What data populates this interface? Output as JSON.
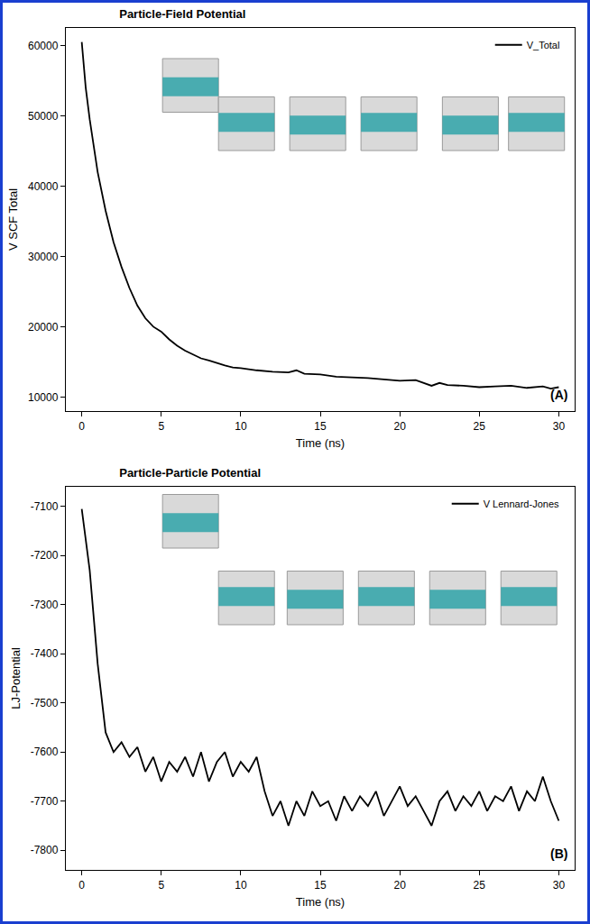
{
  "chart_data": [
    {
      "type": "line",
      "title": "Particle-Field Potential",
      "x_label": "Time (ns)",
      "y_label": "V SCF Total",
      "x": [
        0,
        0.25,
        0.5,
        0.75,
        1,
        1.5,
        2,
        2.5,
        3,
        3.5,
        4,
        4.5,
        5,
        5.5,
        6,
        6.5,
        7,
        7.5,
        8,
        8.5,
        9,
        9.5,
        10,
        11,
        12,
        13,
        13.5,
        14,
        15,
        16,
        17,
        18,
        19,
        20,
        21,
        22,
        22.5,
        23,
        24,
        25,
        26,
        27,
        28,
        29,
        29.5,
        30
      ],
      "series": [
        {
          "name": "V_Total",
          "color": "#000000",
          "values": [
            60500,
            54000,
            49500,
            45500,
            42000,
            36500,
            32000,
            28500,
            25500,
            23000,
            21200,
            20000,
            19300,
            18200,
            17300,
            16600,
            16000,
            15500,
            15200,
            14800,
            14500,
            14200,
            14100,
            13800,
            13600,
            13500,
            13800,
            13300,
            13200,
            12900,
            12800,
            12700,
            12500,
            12300,
            12400,
            11600,
            12000,
            11700,
            11600,
            11400,
            11500,
            11600,
            11300,
            11500,
            11200,
            11400
          ]
        }
      ],
      "xlim": [
        -1,
        31
      ],
      "xticks": [
        0,
        5,
        10,
        15,
        20,
        25,
        30
      ],
      "ylim": [
        8000,
        62500
      ],
      "yticks": [
        10000,
        20000,
        30000,
        40000,
        50000,
        60000
      ],
      "legend": "upper right",
      "grid": false,
      "annotations": [
        "(A)"
      ]
    },
    {
      "type": "line",
      "title": "Particle-Particle Potential",
      "x_label": "Time (ns)",
      "y_label": "LJ-Potential",
      "x": [
        0,
        0.5,
        1,
        1.5,
        2,
        2.5,
        3,
        3.5,
        4,
        4.5,
        5,
        5.5,
        6,
        6.5,
        7,
        7.5,
        8,
        8.5,
        9,
        9.5,
        10,
        10.5,
        11,
        11.5,
        12,
        12.5,
        13,
        13.5,
        14,
        14.5,
        15,
        15.5,
        16,
        16.5,
        17,
        17.5,
        18,
        18.5,
        19,
        19.5,
        20,
        20.5,
        21,
        21.5,
        22,
        22.5,
        23,
        23.5,
        24,
        24.5,
        25,
        25.5,
        26,
        26.5,
        27,
        27.5,
        28,
        28.5,
        29,
        29.5,
        30
      ],
      "series": [
        {
          "name": "V Lennard-Jones",
          "color": "#000000",
          "values": [
            -7105,
            -7230,
            -7420,
            -7560,
            -7600,
            -7580,
            -7610,
            -7590,
            -7640,
            -7610,
            -7660,
            -7620,
            -7640,
            -7610,
            -7650,
            -7600,
            -7660,
            -7620,
            -7600,
            -7650,
            -7620,
            -7640,
            -7610,
            -7680,
            -7730,
            -7700,
            -7750,
            -7700,
            -7730,
            -7680,
            -7710,
            -7700,
            -7740,
            -7690,
            -7720,
            -7690,
            -7710,
            -7680,
            -7730,
            -7700,
            -7670,
            -7710,
            -7690,
            -7720,
            -7750,
            -7700,
            -7680,
            -7720,
            -7690,
            -7710,
            -7680,
            -7720,
            -7690,
            -7700,
            -7670,
            -7720,
            -7680,
            -7700,
            -7650,
            -7700,
            -7740
          ]
        }
      ],
      "xlim": [
        -1,
        31
      ],
      "xticks": [
        0,
        5,
        10,
        15,
        20,
        25,
        30
      ],
      "ylim": [
        -7840,
        -7060
      ],
      "yticks": [
        -7800,
        -7700,
        -7600,
        -7500,
        -7400,
        -7300,
        -7200,
        -7100
      ],
      "legend": "upper right",
      "grid": false,
      "annotations": [
        "(B)"
      ]
    }
  ]
}
